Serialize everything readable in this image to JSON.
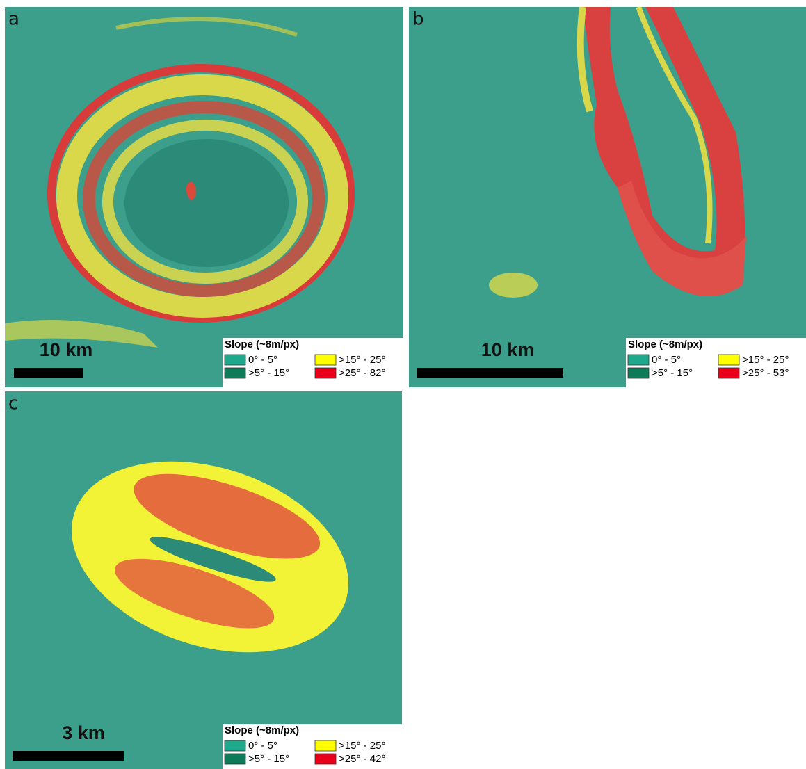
{
  "panels": [
    {
      "label": "a",
      "scale": "10 km",
      "legend": {
        "title": "Slope (~8m/px)",
        "items": [
          {
            "label": "0° - 5°",
            "color": "#1ea98c"
          },
          {
            "label": ">15° - 25°",
            "color": "#ffff00"
          },
          {
            "label": ">5° - 15°",
            "color": "#0d7a58"
          },
          {
            "label": ">25° - 82°",
            "color": "#e8001a"
          }
        ]
      }
    },
    {
      "label": "b",
      "scale": "10 km",
      "legend": {
        "title": "Slope (~8m/px)",
        "items": [
          {
            "label": "0° - 5°",
            "color": "#1ea98c"
          },
          {
            "label": ">15° - 25°",
            "color": "#ffff00"
          },
          {
            "label": ">5° - 15°",
            "color": "#0d7a58"
          },
          {
            "label": ">25° - 53°",
            "color": "#e8001a"
          }
        ]
      }
    },
    {
      "label": "c",
      "scale": "3 km",
      "legend": {
        "title": "Slope (~8m/px)",
        "items": [
          {
            "label": "0° - 5°",
            "color": "#1ea98c"
          },
          {
            "label": ">15° - 25°",
            "color": "#ffff00"
          },
          {
            "label": ">5° - 15°",
            "color": "#0d7a58"
          },
          {
            "label": ">25° - 42°",
            "color": "#e8001a"
          }
        ]
      }
    }
  ]
}
